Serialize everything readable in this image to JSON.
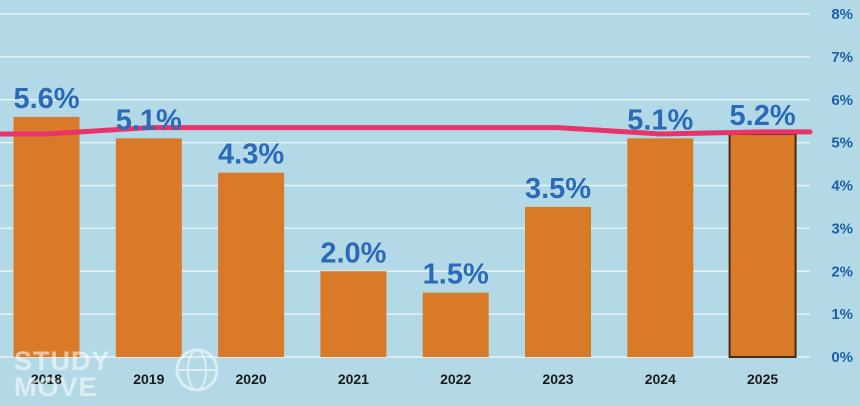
{
  "colors": {
    "background": "#b2d9e5",
    "gridline": "#e7f2f6",
    "bar": "#d97a29",
    "bar_last_outline": "#4a2a12",
    "reference_line": "#e8336b",
    "data_label": "#2b6ab8",
    "y_tick": "#1f5ea8",
    "x_tick": "#1b1b1b"
  },
  "watermark": {
    "lines": [
      "STUDY",
      "MOVE"
    ],
    "icon": "globe-icon"
  },
  "chart_data": {
    "type": "bar",
    "title": "",
    "xlabel": "",
    "ylabel": "",
    "categories": [
      "2018",
      "2019",
      "2020",
      "2021",
      "2022",
      "2023",
      "2024",
      "2025"
    ],
    "series": [
      {
        "values": [
          5.6,
          5.1,
          4.3,
          2.0,
          1.5,
          3.5,
          5.1,
          5.2
        ],
        "data_labels": [
          "5.6%",
          "5.1%",
          "4.3%",
          "2.0%",
          "1.5%",
          "3.5%",
          "5.1%",
          "5.2%"
        ]
      }
    ],
    "reference_line": {
      "values": [
        5.2,
        5.35,
        5.35,
        5.35,
        5.35,
        5.35,
        5.2,
        5.25
      ]
    },
    "ylim": [
      0,
      8
    ],
    "y_ticks": [
      "0%",
      "1%",
      "2%",
      "3%",
      "4%",
      "5%",
      "6%",
      "7%",
      "8%"
    ],
    "y_axis_position": "right",
    "grid": true,
    "legend": "none"
  }
}
